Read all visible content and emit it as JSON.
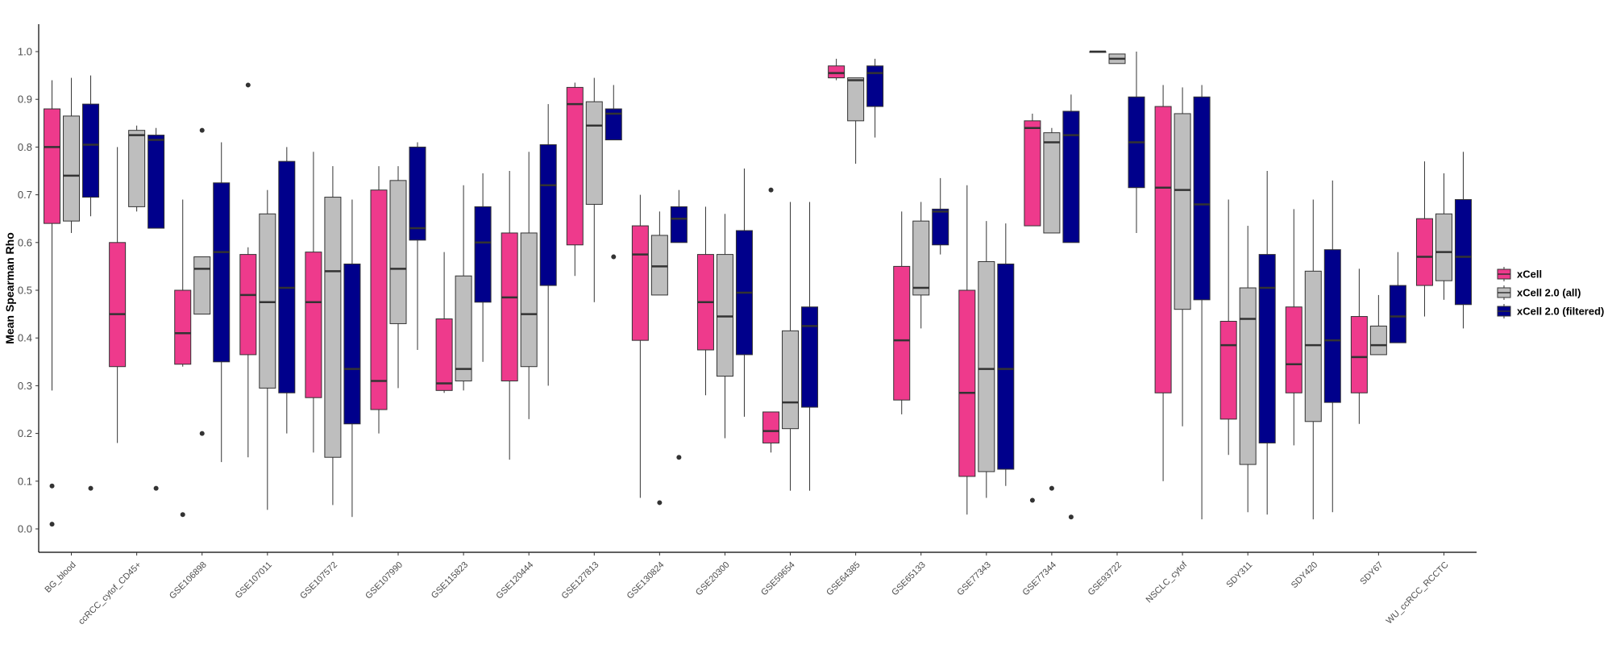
{
  "chart_data": {
    "type": "boxplot",
    "title": "",
    "xlabel": "",
    "ylabel": "Mean Spearman Rho",
    "ylim": [
      -0.05,
      1.05
    ],
    "yticks": [
      0.0,
      0.1,
      0.2,
      0.3,
      0.4,
      0.5,
      0.6,
      0.7,
      0.8,
      0.9,
      1.0
    ],
    "grid": false,
    "legend": {
      "placement": "right",
      "entries": [
        "xCell",
        "xCell 2.0 (all)",
        "xCell 2.0 (filtered)"
      ]
    },
    "colors": {
      "xCell": "#ee3a8c",
      "xCell 2.0 (all)": "#bebebe",
      "xCell 2.0 (filtered)": "#00008b"
    },
    "categories": [
      "BG_blood",
      "ccRCC_cytof_CD45+",
      "GSE106898",
      "GSE107011",
      "GSE107572",
      "GSE107990",
      "GSE115823",
      "GSE120444",
      "GSE127813",
      "GSE130824",
      "GSE20300",
      "GSE59654",
      "GSE64385",
      "GSE65133",
      "GSE77343",
      "GSE77344",
      "GSE93722",
      "NSCLC_cytof",
      "SDY311",
      "SDY420",
      "SDY67",
      "WU_ccRCC_RCCTC"
    ],
    "series": [
      {
        "name": "xCell",
        "boxes": [
          {
            "min": 0.29,
            "q1": 0.64,
            "median": 0.8,
            "q3": 0.88,
            "max": 0.94,
            "outliers": [
              0.09,
              0.01
            ]
          },
          {
            "min": 0.18,
            "q1": 0.34,
            "median": 0.45,
            "q3": 0.6,
            "max": 0.8,
            "outliers": []
          },
          {
            "min": 0.34,
            "q1": 0.345,
            "median": 0.41,
            "q3": 0.5,
            "max": 0.69,
            "outliers": [
              0.03
            ]
          },
          {
            "min": 0.15,
            "q1": 0.365,
            "median": 0.49,
            "q3": 0.575,
            "max": 0.59,
            "outliers": [
              0.93
            ]
          },
          {
            "min": 0.16,
            "q1": 0.275,
            "median": 0.475,
            "q3": 0.58,
            "max": 0.79,
            "outliers": []
          },
          {
            "min": 0.2,
            "q1": 0.25,
            "median": 0.31,
            "q3": 0.71,
            "max": 0.76,
            "outliers": []
          },
          {
            "min": 0.285,
            "q1": 0.29,
            "median": 0.305,
            "q3": 0.44,
            "max": 0.58,
            "outliers": []
          },
          {
            "min": 0.145,
            "q1": 0.31,
            "median": 0.485,
            "q3": 0.62,
            "max": 0.75,
            "outliers": []
          },
          {
            "min": 0.53,
            "q1": 0.595,
            "median": 0.89,
            "q3": 0.925,
            "max": 0.935,
            "outliers": []
          },
          {
            "min": 0.065,
            "q1": 0.395,
            "median": 0.575,
            "q3": 0.635,
            "max": 0.7,
            "outliers": []
          },
          {
            "min": 0.28,
            "q1": 0.375,
            "median": 0.475,
            "q3": 0.575,
            "max": 0.675,
            "outliers": []
          },
          {
            "min": 0.16,
            "q1": 0.18,
            "median": 0.205,
            "q3": 0.245,
            "max": 0.245,
            "outliers": [
              0.71
            ]
          },
          {
            "min": 0.94,
            "q1": 0.945,
            "median": 0.955,
            "q3": 0.97,
            "max": 0.985,
            "outliers": []
          },
          {
            "min": 0.24,
            "q1": 0.27,
            "median": 0.395,
            "q3": 0.55,
            "max": 0.665,
            "outliers": []
          },
          {
            "min": 0.03,
            "q1": 0.11,
            "median": 0.285,
            "q3": 0.5,
            "max": 0.72,
            "outliers": []
          },
          {
            "min": 0.635,
            "q1": 0.635,
            "median": 0.84,
            "q3": 0.855,
            "max": 0.87,
            "outliers": [
              0.06
            ]
          },
          {
            "min": 1.0,
            "q1": 1.0,
            "median": 1.0,
            "q3": 1.0,
            "max": 1.0,
            "outliers": []
          },
          {
            "min": 0.1,
            "q1": 0.285,
            "median": 0.715,
            "q3": 0.885,
            "max": 0.93,
            "outliers": []
          },
          {
            "min": 0.155,
            "q1": 0.23,
            "median": 0.385,
            "q3": 0.435,
            "max": 0.69,
            "outliers": []
          },
          {
            "min": 0.175,
            "q1": 0.285,
            "median": 0.345,
            "q3": 0.465,
            "max": 0.67,
            "outliers": []
          },
          {
            "min": 0.22,
            "q1": 0.285,
            "median": 0.36,
            "q3": 0.445,
            "max": 0.545,
            "outliers": []
          },
          {
            "min": 0.445,
            "q1": 0.51,
            "median": 0.57,
            "q3": 0.65,
            "max": 0.77,
            "outliers": []
          }
        ]
      },
      {
        "name": "xCell 2.0 (all)",
        "boxes": [
          {
            "min": 0.62,
            "q1": 0.645,
            "median": 0.74,
            "q3": 0.865,
            "max": 0.945,
            "outliers": []
          },
          {
            "min": 0.665,
            "q1": 0.675,
            "median": 0.825,
            "q3": 0.835,
            "max": 0.845,
            "outliers": []
          },
          {
            "min": 0.45,
            "q1": 0.45,
            "median": 0.545,
            "q3": 0.57,
            "max": 0.57,
            "outliers": [
              0.835,
              0.2
            ]
          },
          {
            "min": 0.04,
            "q1": 0.295,
            "median": 0.475,
            "q3": 0.66,
            "max": 0.71,
            "outliers": []
          },
          {
            "min": 0.05,
            "q1": 0.15,
            "median": 0.54,
            "q3": 0.695,
            "max": 0.76,
            "outliers": []
          },
          {
            "min": 0.295,
            "q1": 0.43,
            "median": 0.545,
            "q3": 0.73,
            "max": 0.76,
            "outliers": []
          },
          {
            "min": 0.29,
            "q1": 0.31,
            "median": 0.335,
            "q3": 0.53,
            "max": 0.72,
            "outliers": []
          },
          {
            "min": 0.23,
            "q1": 0.34,
            "median": 0.45,
            "q3": 0.62,
            "max": 0.79,
            "outliers": []
          },
          {
            "min": 0.475,
            "q1": 0.68,
            "median": 0.845,
            "q3": 0.895,
            "max": 0.945,
            "outliers": []
          },
          {
            "min": 0.49,
            "q1": 0.49,
            "median": 0.55,
            "q3": 0.615,
            "max": 0.665,
            "outliers": [
              0.055
            ]
          },
          {
            "min": 0.19,
            "q1": 0.32,
            "median": 0.445,
            "q3": 0.575,
            "max": 0.66,
            "outliers": []
          },
          {
            "min": 0.08,
            "q1": 0.21,
            "median": 0.265,
            "q3": 0.415,
            "max": 0.685,
            "outliers": []
          },
          {
            "min": 0.765,
            "q1": 0.855,
            "median": 0.94,
            "q3": 0.945,
            "max": 0.945,
            "outliers": []
          },
          {
            "min": 0.42,
            "q1": 0.49,
            "median": 0.505,
            "q3": 0.645,
            "max": 0.685,
            "outliers": []
          },
          {
            "min": 0.065,
            "q1": 0.12,
            "median": 0.335,
            "q3": 0.56,
            "max": 0.645,
            "outliers": []
          },
          {
            "min": 0.62,
            "q1": 0.62,
            "median": 0.81,
            "q3": 0.83,
            "max": 0.84,
            "outliers": [
              0.085
            ]
          },
          {
            "min": 0.975,
            "q1": 0.975,
            "median": 0.985,
            "q3": 0.995,
            "max": 0.995,
            "outliers": []
          },
          {
            "min": 0.215,
            "q1": 0.46,
            "median": 0.71,
            "q3": 0.87,
            "max": 0.925,
            "outliers": []
          },
          {
            "min": 0.035,
            "q1": 0.135,
            "median": 0.44,
            "q3": 0.505,
            "max": 0.635,
            "outliers": []
          },
          {
            "min": 0.02,
            "q1": 0.225,
            "median": 0.385,
            "q3": 0.54,
            "max": 0.69,
            "outliers": []
          },
          {
            "min": 0.365,
            "q1": 0.365,
            "median": 0.385,
            "q3": 0.425,
            "max": 0.49,
            "outliers": []
          },
          {
            "min": 0.48,
            "q1": 0.52,
            "median": 0.58,
            "q3": 0.66,
            "max": 0.745,
            "outliers": []
          }
        ]
      },
      {
        "name": "xCell 2.0 (filtered)",
        "boxes": [
          {
            "min": 0.655,
            "q1": 0.695,
            "median": 0.805,
            "q3": 0.89,
            "max": 0.95,
            "outliers": [
              0.085
            ]
          },
          {
            "min": 0.63,
            "q1": 0.63,
            "median": 0.815,
            "q3": 0.825,
            "max": 0.84,
            "outliers": [
              0.085
            ]
          },
          {
            "min": 0.14,
            "q1": 0.35,
            "median": 0.58,
            "q3": 0.725,
            "max": 0.81,
            "outliers": []
          },
          {
            "min": 0.2,
            "q1": 0.285,
            "median": 0.505,
            "q3": 0.77,
            "max": 0.8,
            "outliers": []
          },
          {
            "min": 0.025,
            "q1": 0.22,
            "median": 0.335,
            "q3": 0.555,
            "max": 0.69,
            "outliers": []
          },
          {
            "min": 0.375,
            "q1": 0.605,
            "median": 0.63,
            "q3": 0.8,
            "max": 0.81,
            "outliers": []
          },
          {
            "min": 0.35,
            "q1": 0.475,
            "median": 0.6,
            "q3": 0.675,
            "max": 0.745,
            "outliers": []
          },
          {
            "min": 0.3,
            "q1": 0.51,
            "median": 0.72,
            "q3": 0.805,
            "max": 0.89,
            "outliers": []
          },
          {
            "min": 0.815,
            "q1": 0.815,
            "median": 0.87,
            "q3": 0.88,
            "max": 0.93,
            "outliers": [
              0.57
            ]
          },
          {
            "min": 0.6,
            "q1": 0.6,
            "median": 0.65,
            "q3": 0.675,
            "max": 0.71,
            "outliers": [
              0.15
            ]
          },
          {
            "min": 0.235,
            "q1": 0.365,
            "median": 0.495,
            "q3": 0.625,
            "max": 0.755,
            "outliers": []
          },
          {
            "min": 0.08,
            "q1": 0.255,
            "median": 0.425,
            "q3": 0.465,
            "max": 0.685,
            "outliers": []
          },
          {
            "min": 0.82,
            "q1": 0.885,
            "median": 0.955,
            "q3": 0.97,
            "max": 0.985,
            "outliers": []
          },
          {
            "min": 0.575,
            "q1": 0.595,
            "median": 0.665,
            "q3": 0.67,
            "max": 0.735,
            "outliers": []
          },
          {
            "min": 0.09,
            "q1": 0.125,
            "median": 0.335,
            "q3": 0.555,
            "max": 0.64,
            "outliers": []
          },
          {
            "min": 0.6,
            "q1": 0.6,
            "median": 0.825,
            "q3": 0.875,
            "max": 0.91,
            "outliers": [
              0.025
            ]
          },
          {
            "min": 0.62,
            "q1": 0.715,
            "median": 0.81,
            "q3": 0.905,
            "max": 1.0,
            "outliers": []
          },
          {
            "min": 0.02,
            "q1": 0.48,
            "median": 0.68,
            "q3": 0.905,
            "max": 0.93,
            "outliers": []
          },
          {
            "min": 0.03,
            "q1": 0.18,
            "median": 0.505,
            "q3": 0.575,
            "max": 0.75,
            "outliers": []
          },
          {
            "min": 0.035,
            "q1": 0.265,
            "median": 0.395,
            "q3": 0.585,
            "max": 0.73,
            "outliers": []
          },
          {
            "min": 0.39,
            "q1": 0.39,
            "median": 0.445,
            "q3": 0.51,
            "max": 0.58,
            "outliers": []
          },
          {
            "min": 0.42,
            "q1": 0.47,
            "median": 0.57,
            "q3": 0.69,
            "max": 0.79,
            "outliers": []
          }
        ]
      }
    ]
  }
}
